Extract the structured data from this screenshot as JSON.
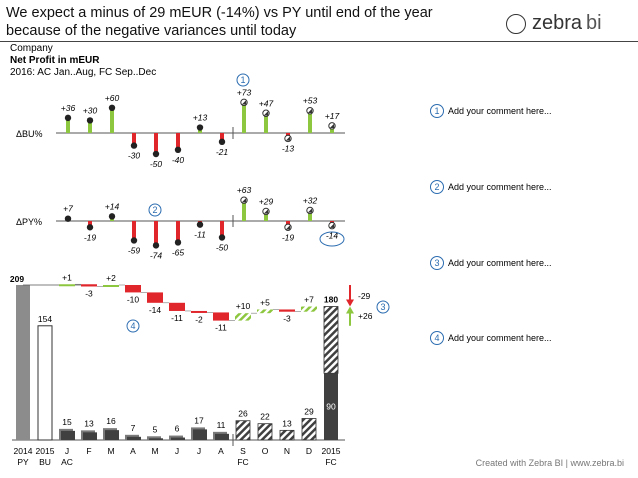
{
  "header": {
    "title_line1": "We expect a minus of 29 mEUR (-14%) vs PY until end of the year",
    "title_line2": "because of the negative variances until today",
    "company": "Company",
    "measure": "Net Profit in mEUR",
    "period": "2016: AC Jan..Aug, FC Sep..Dec",
    "logo_text": "zebra",
    "logo_bi": "bi"
  },
  "footer": "Created with Zebra BI  |  www.zebra.bi",
  "comments": [
    {
      "num": "1",
      "text": "Add your comment here..."
    },
    {
      "num": "2",
      "text": "Add your comment here..."
    },
    {
      "num": "3",
      "text": "Add your comment here..."
    },
    {
      "num": "4",
      "text": "Add your comment here..."
    }
  ],
  "colors": {
    "positive": "#8dc63f",
    "negative": "#e0252b",
    "ac": "#404040",
    "fc_hatch": "#404040",
    "py": "#8c8c8c",
    "accent": "#2b6cb0"
  },
  "chart_data": [
    {
      "type": "lollipop",
      "name": "dbu",
      "axis_label": "ΔBU%",
      "categories": [
        "J",
        "F",
        "M",
        "A",
        "M",
        "J",
        "J",
        "A",
        "S",
        "O",
        "N",
        "D"
      ],
      "values": [
        36,
        30,
        60,
        -30,
        -50,
        -40,
        13,
        -21,
        73,
        47,
        -13,
        53,
        17
      ],
      "labels": [
        "+36",
        "+30",
        "+60",
        "-30",
        "-50",
        "-40",
        "+13",
        "-21",
        "+73",
        "+47",
        "-13",
        "+53",
        "+17"
      ],
      "months_values": [
        36,
        30,
        60,
        -30,
        -50,
        -40,
        13,
        -21,
        73,
        47,
        -13,
        53,
        17
      ]
    },
    {
      "type": "lollipop",
      "name": "dpy",
      "axis_label": "ΔPY%",
      "labels": [
        "+7",
        "-19",
        "+14",
        "-59",
        "-74",
        "-65",
        "-11",
        "-50",
        "+63",
        "+29",
        "-19",
        "+32",
        "-14"
      ],
      "values": [
        7,
        -19,
        14,
        -59,
        -74,
        -65,
        -11,
        -50,
        63,
        29,
        -19,
        32,
        -14
      ]
    },
    {
      "type": "waterfall_bar",
      "name": "main",
      "x_labels": [
        "2014",
        "2015",
        "J",
        "F",
        "M",
        "A",
        "M",
        "J",
        "J",
        "A",
        "S",
        "O",
        "N",
        "D",
        "2015"
      ],
      "x_sublabels": [
        "PY",
        "BU",
        "AC",
        "",
        "",
        "",
        "",
        "",
        "",
        "",
        "FC",
        "",
        "",
        "",
        "FC"
      ],
      "totals": {
        "py": 209,
        "bu": 154,
        "end": 180,
        "end_fc": 90
      },
      "months": [
        15,
        13,
        16,
        7,
        5,
        6,
        17,
        11,
        26,
        22,
        13,
        29
      ],
      "month_labels": [
        "15",
        "13",
        "16",
        "7",
        "5",
        "6",
        "17",
        "11",
        "26",
        "22",
        "13",
        "29"
      ],
      "variances": [
        1,
        -3,
        2,
        -10,
        -14,
        -11,
        -2,
        -11,
        10,
        5,
        -3,
        7
      ],
      "variance_labels": [
        "+1",
        "-3",
        "+2",
        "-10",
        "-14",
        "-11",
        "-2",
        "-11",
        "+10",
        "+5",
        "-3",
        "+7"
      ],
      "total_labels": [
        "209",
        "154",
        "180",
        "90"
      ],
      "delta_py": "-29",
      "delta_bu": "+26",
      "ylim": [
        0,
        215
      ]
    }
  ]
}
